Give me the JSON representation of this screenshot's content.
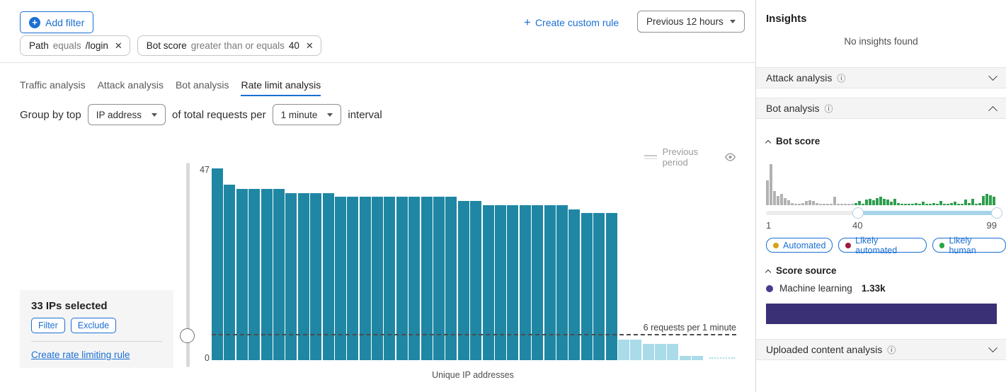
{
  "colors": {
    "blue": "#1a6fd4",
    "teal": "#1f87a4",
    "light_blue": "#a9dbe9",
    "hist_gray": "#b2b2b2",
    "hist_green": "#2f9e4e",
    "purple_bar": "#3a3076",
    "purple_dot": "#473c8f",
    "dot_automated": "#d8a117",
    "dot_likely_automated": "#9e1b42",
    "dot_likely_human": "#27a348"
  },
  "toolbar": {
    "add_filter_label": "Add filter",
    "create_custom_rule_label": "Create custom rule",
    "time_range_value": "Previous 12 hours",
    "filters": [
      {
        "field": "Path",
        "operator": "equals",
        "value": "/login"
      },
      {
        "field": "Bot score",
        "operator": "greater than or equals",
        "value": "40"
      }
    ]
  },
  "tabs": [
    {
      "label": "Traffic analysis",
      "active": false
    },
    {
      "label": "Attack analysis",
      "active": false
    },
    {
      "label": "Bot analysis",
      "active": false
    },
    {
      "label": "Rate limit analysis",
      "active": true
    }
  ],
  "group_by": {
    "prefix": "Group by top",
    "dimension_value": "IP address",
    "middle": "of total requests per",
    "interval_value": "1 minute",
    "suffix": "interval"
  },
  "selection_panel": {
    "title": "33 IPs selected",
    "filter_label": "Filter",
    "exclude_label": "Exclude",
    "link_label": "Create rate limiting rule"
  },
  "chart_data": [
    {
      "name": "requests-per-unique-ip",
      "type": "bar",
      "xlabel": "Unique IP addresses",
      "y_top_label": "47",
      "y_bottom_label": "0",
      "ylim": [
        0,
        47
      ],
      "threshold": {
        "value": 6,
        "label": "6 requests per 1 minute"
      },
      "legend": [
        {
          "label": "Previous period",
          "visible": false
        }
      ],
      "selected_count": 33,
      "values": [
        47,
        43,
        42,
        42,
        42,
        42,
        41,
        41,
        41,
        41,
        40,
        40,
        40,
        40,
        40,
        40,
        40,
        40,
        40,
        40,
        39,
        39,
        38,
        38,
        38,
        38,
        38,
        38,
        38,
        37,
        36,
        36,
        36,
        5,
        5,
        4,
        4,
        4,
        1,
        1
      ]
    },
    {
      "name": "bot-score-distribution",
      "type": "histogram",
      "x_ticks": [
        "1",
        "40",
        "99"
      ],
      "range_selected": [
        40,
        99
      ],
      "gray_heights": [
        35,
        58,
        20,
        13,
        16,
        10,
        7,
        3,
        2,
        2,
        3,
        6,
        7,
        6,
        3,
        2,
        2,
        2,
        2,
        12,
        2,
        2,
        2,
        2,
        2
      ],
      "green_heights": [
        3,
        6,
        2,
        8,
        9,
        7,
        10,
        12,
        9,
        8,
        5,
        9,
        3,
        2,
        2,
        2,
        2,
        3,
        2,
        5,
        2,
        2,
        3,
        2,
        6,
        2,
        2,
        3,
        5,
        2,
        2,
        8,
        3,
        9,
        2,
        3,
        13,
        16,
        14,
        12
      ]
    }
  ],
  "sidebar": {
    "title": "Insights",
    "empty_message": "No insights found",
    "sections": [
      {
        "label": "Attack analysis",
        "expanded": false
      },
      {
        "label": "Bot analysis",
        "expanded": true
      },
      {
        "label": "Uploaded content analysis",
        "expanded": false
      }
    ],
    "bot_score": {
      "label": "Bot score",
      "ticks": {
        "min": "1",
        "low": "40",
        "max": "99"
      },
      "badges": [
        {
          "label": "Automated"
        },
        {
          "label": "Likely automated"
        },
        {
          "label": "Likely human"
        }
      ]
    },
    "score_source": {
      "label": "Score source",
      "source_label": "Machine learning",
      "source_value": "1.33k"
    }
  }
}
